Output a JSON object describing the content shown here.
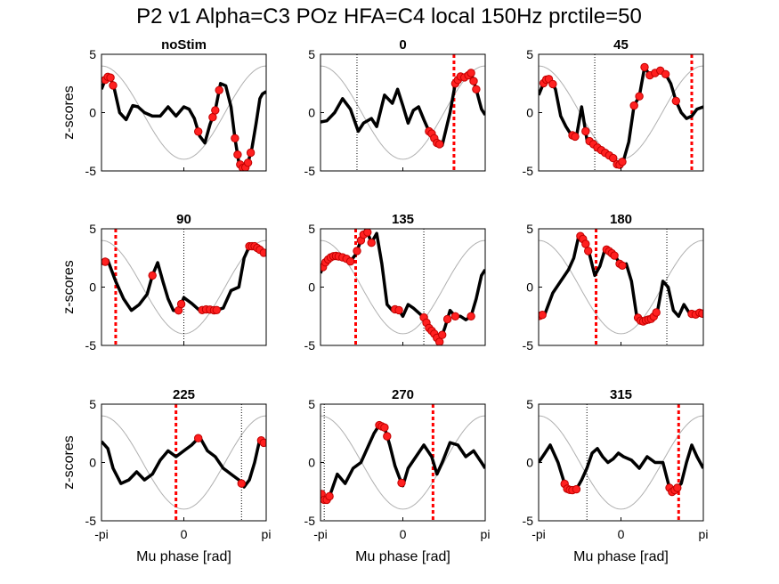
{
  "figure": {
    "title": "P2 v1 Alpha=C3 POz HFA=C4 local 150Hz prctile=50",
    "xlabel": "Mu phase [rad]",
    "ylabel": "z-scores",
    "xticklabels": [
      "-pi",
      "0",
      "pi"
    ],
    "yticklabels": [
      "5",
      "0",
      "-5"
    ]
  },
  "colors": {
    "trace": "#000000",
    "sig_marker": "#ff2020",
    "sig_marker_edge": "#c00000",
    "stim_line": "#ff0000",
    "reference_sine": "#b0b0b0",
    "axes": "#000000"
  },
  "chart_data": [
    {
      "type": "line",
      "title": "noStim",
      "xlim": [
        -3.1416,
        3.1416
      ],
      "ylim": [
        -5,
        5
      ],
      "grid": false,
      "has_ylabel": true,
      "has_xlabel": false,
      "has_xticklabels": false,
      "stim_phase": null,
      "reference_dotted_x": null,
      "series": [
        {
          "name": "",
          "x": [
            -3.14,
            -2.95,
            -2.8,
            -2.65,
            -2.45,
            -2.2,
            -1.95,
            -1.75,
            -1.5,
            -1.2,
            -0.9,
            -0.6,
            -0.3,
            0,
            0.2,
            0.4,
            0.6,
            0.8,
            1.0,
            1.2,
            1.4,
            1.6,
            1.8,
            1.95,
            2.1,
            2.3,
            2.45,
            2.6,
            2.75,
            2.9,
            3.0,
            3.14
          ],
          "y": [
            2.0,
            3.1,
            3.0,
            2.0,
            0.0,
            -0.6,
            0.6,
            0.5,
            0,
            -0.3,
            -0.3,
            0.5,
            -0.3,
            0.5,
            0.3,
            -0.5,
            -2.0,
            -2.6,
            -1.0,
            0.2,
            2.5,
            2.3,
            0.5,
            -2.2,
            -4.3,
            -4.9,
            -4.3,
            -3.0,
            -1.0,
            1.2,
            1.6,
            1.8
          ]
        },
        {
          "name": "sine",
          "x": [
            -3.14,
            3.14
          ],
          "y": [
            -4,
            4
          ]
        }
      ],
      "significant_x": [
        -3.0,
        -2.9,
        -2.8,
        -2.7,
        0.55,
        1.1,
        1.2,
        1.35,
        1.95,
        2.05,
        2.15,
        2.25,
        2.35,
        2.45,
        2.55
      ]
    },
    {
      "type": "line",
      "title": "0",
      "xlim": [
        -3.1416,
        3.1416
      ],
      "ylim": [
        -5,
        5
      ],
      "grid": false,
      "has_ylabel": false,
      "has_xlabel": false,
      "has_xticklabels": false,
      "stim_phase": 1.95,
      "reference_dotted_x": -1.75,
      "series": [
        {
          "name": "",
          "x": [
            -3.14,
            -2.9,
            -2.6,
            -2.3,
            -2.0,
            -1.7,
            -1.5,
            -1.2,
            -1.0,
            -0.7,
            -0.4,
            -0.2,
            0,
            0.2,
            0.4,
            0.6,
            0.8,
            1.0,
            1.1,
            1.3,
            1.5,
            1.8,
            2.0,
            2.2,
            2.4,
            2.6,
            2.8,
            3.0,
            3.14
          ],
          "y": [
            -0.8,
            -0.7,
            0.0,
            1.2,
            0.3,
            -1.6,
            -0.9,
            -0.5,
            -1.2,
            1.5,
            0.8,
            2.0,
            0.6,
            -0.9,
            0.2,
            0.5,
            -0.6,
            -1.6,
            -1.8,
            -2.6,
            -2.8,
            0.0,
            2.5,
            3.1,
            3.0,
            3.4,
            2.0,
            0.3,
            -0.2
          ]
        },
        {
          "name": "sine",
          "x": [
            -3.14,
            3.14
          ],
          "y": [
            -4,
            4
          ]
        }
      ],
      "significant_x": [
        1.0,
        1.1,
        1.2,
        1.3,
        1.4,
        2.0,
        2.1,
        2.2,
        2.35,
        2.5,
        2.6,
        2.7,
        2.8
      ]
    },
    {
      "type": "line",
      "title": "45",
      "xlim": [
        -3.1416,
        3.1416
      ],
      "ylim": [
        -5,
        5
      ],
      "grid": false,
      "has_ylabel": false,
      "has_xlabel": false,
      "has_xticklabels": false,
      "stim_phase": 2.7,
      "reference_dotted_x": -1.0,
      "series": [
        {
          "name": "",
          "x": [
            -3.14,
            -2.9,
            -2.7,
            -2.5,
            -2.3,
            -2.1,
            -1.9,
            -1.7,
            -1.5,
            -1.3,
            -1.1,
            -0.9,
            -0.7,
            -0.5,
            -0.3,
            -0.1,
            0.1,
            0.3,
            0.5,
            0.7,
            0.9,
            1.1,
            1.3,
            1.5,
            1.7,
            1.9,
            2.1,
            2.3,
            2.5,
            2.7,
            2.9,
            3.14
          ],
          "y": [
            1.5,
            2.8,
            2.9,
            2.0,
            -0.3,
            -1.2,
            -1.9,
            -2.1,
            0.5,
            -2.3,
            -2.6,
            -3.0,
            -3.3,
            -3.6,
            -3.9,
            -4.6,
            -4.1,
            -2.5,
            0.6,
            1.4,
            3.9,
            3.2,
            3.4,
            3.6,
            3.3,
            2.5,
            1.0,
            0.0,
            -0.5,
            -0.3,
            0.3,
            0.5
          ]
        },
        {
          "name": "sine",
          "x": [
            -3.14,
            3.14
          ],
          "y": [
            -4,
            4
          ]
        }
      ],
      "significant_x": [
        -2.95,
        -2.85,
        -2.75,
        -2.6,
        -1.85,
        -1.75,
        -1.35,
        -1.2,
        -1.05,
        -0.9,
        -0.75,
        -0.6,
        -0.45,
        -0.3,
        -0.15,
        -0.05,
        0.05,
        0.5,
        0.7,
        0.9,
        1.1,
        1.3,
        1.5,
        1.7,
        2.1
      ]
    },
    {
      "type": "line",
      "title": "90",
      "xlim": [
        -3.1416,
        3.1416
      ],
      "ylim": [
        -5,
        5
      ],
      "grid": false,
      "has_ylabel": true,
      "has_xlabel": false,
      "has_xticklabels": false,
      "stim_phase": -2.6,
      "reference_dotted_x": 0,
      "series": [
        {
          "name": "",
          "x": [
            -3.14,
            -2.9,
            -2.6,
            -2.3,
            -2.0,
            -1.7,
            -1.4,
            -1.2,
            -1.0,
            -0.8,
            -0.6,
            -0.4,
            -0.2,
            0,
            0.3,
            0.6,
            0.9,
            1.2,
            1.5,
            1.8,
            2.1,
            2.3,
            2.5,
            2.7,
            2.9,
            3.14
          ],
          "y": [
            2.0,
            2.3,
            0.5,
            -1.0,
            -2.0,
            -1.5,
            -0.6,
            1.0,
            2.1,
            0.5,
            -1.0,
            -2.0,
            -2.0,
            -0.9,
            -1.4,
            -2.0,
            -1.9,
            -2.0,
            -1.8,
            -0.3,
            0.0,
            2.5,
            3.5,
            3.5,
            3.2,
            2.8
          ]
        },
        {
          "name": "sine",
          "x": [
            -3.14,
            3.14
          ],
          "y": [
            -4,
            4
          ]
        }
      ],
      "significant_x": [
        -3.0,
        -1.2,
        -0.2,
        -0.1,
        0.7,
        0.85,
        1.0,
        1.15,
        1.25,
        2.5,
        2.6,
        2.7,
        2.8,
        2.9,
        3.05
      ]
    },
    {
      "type": "line",
      "title": "135",
      "xlim": [
        -3.1416,
        3.1416
      ],
      "ylim": [
        -5,
        5
      ],
      "grid": false,
      "has_ylabel": false,
      "has_xlabel": false,
      "has_xticklabels": false,
      "stim_phase": -1.8,
      "reference_dotted_x": 0.8,
      "series": [
        {
          "name": "",
          "x": [
            -3.14,
            -3.0,
            -2.8,
            -2.6,
            -2.4,
            -2.2,
            -2.0,
            -1.8,
            -1.6,
            -1.4,
            -1.2,
            -1.0,
            -0.8,
            -0.6,
            -0.4,
            -0.2,
            0,
            0.2,
            0.4,
            0.6,
            0.8,
            1.0,
            1.2,
            1.4,
            1.6,
            1.8,
            2.0,
            2.2,
            2.4,
            2.6,
            2.8,
            3.0,
            3.14
          ],
          "y": [
            1.2,
            2.0,
            2.5,
            2.7,
            2.6,
            2.5,
            2.2,
            2.8,
            4.0,
            5.0,
            3.8,
            4.6,
            2.0,
            -1.5,
            -2.0,
            -1.8,
            -2.5,
            -1.5,
            -1.8,
            -2.2,
            -2.6,
            -3.5,
            -4.0,
            -4.7,
            -3.5,
            -2.0,
            -2.5,
            -2.5,
            -2.8,
            -2.5,
            -1.0,
            1.0,
            1.5
          ]
        },
        {
          "name": "sine",
          "x": [
            -3.14,
            3.14
          ],
          "y": [
            -4,
            4
          ]
        }
      ],
      "significant_x": [
        -3.05,
        -2.95,
        -2.85,
        -2.75,
        -2.65,
        -2.55,
        -2.45,
        -2.3,
        -2.15,
        -2.0,
        -1.75,
        -1.6,
        -1.5,
        -1.35,
        -1.2,
        -0.3,
        -0.15,
        0.8,
        0.9,
        1.0,
        1.1,
        1.2,
        1.3,
        1.4,
        1.5,
        1.7,
        2.0,
        2.6
      ]
    },
    {
      "type": "line",
      "title": "180",
      "xlim": [
        -3.1416,
        3.1416
      ],
      "ylim": [
        -5,
        5
      ],
      "grid": false,
      "has_ylabel": false,
      "has_xlabel": false,
      "has_xticklabels": false,
      "stim_phase": -0.95,
      "reference_dotted_x": 1.75,
      "series": [
        {
          "name": "",
          "x": [
            -3.14,
            -2.9,
            -2.6,
            -2.3,
            -2.0,
            -1.8,
            -1.6,
            -1.4,
            -1.2,
            -1.0,
            -0.8,
            -0.6,
            -0.4,
            -0.2,
            0,
            0.2,
            0.4,
            0.6,
            0.8,
            1.0,
            1.2,
            1.4,
            1.6,
            1.8,
            2.0,
            2.2,
            2.4,
            2.6,
            2.8,
            3.0,
            3.14
          ],
          "y": [
            -2.5,
            -2.3,
            -0.5,
            0.5,
            1.5,
            2.5,
            4.5,
            4.0,
            2.8,
            1.0,
            1.8,
            3.3,
            3.0,
            2.6,
            1.8,
            2.0,
            0.5,
            -2.5,
            -3.0,
            -2.8,
            -2.7,
            -2.0,
            0.5,
            0.0,
            -2.0,
            -2.5,
            -1.5,
            -2.2,
            -2.4,
            -2.2,
            -2.3
          ]
        },
        {
          "name": "sine",
          "x": [
            -3.14,
            3.14
          ],
          "y": [
            -4,
            4
          ]
        }
      ],
      "significant_x": [
        -3.1,
        -3.0,
        -1.55,
        -1.45,
        -1.35,
        -1.25,
        -0.55,
        -0.45,
        -0.35,
        -0.25,
        -0.05,
        0.05,
        0.65,
        0.75,
        0.85,
        0.95,
        1.05,
        1.15,
        1.25,
        1.35,
        2.7,
        2.85,
        3.0,
        3.1
      ]
    },
    {
      "type": "line",
      "title": "225",
      "xlim": [
        -3.1416,
        3.1416
      ],
      "ylim": [
        -5,
        5
      ],
      "grid": false,
      "has_ylabel": true,
      "has_xlabel": true,
      "has_xticklabels": true,
      "stim_phase": -0.3,
      "reference_dotted_x": 2.2,
      "series": [
        {
          "name": "",
          "x": [
            -3.14,
            -2.9,
            -2.7,
            -2.4,
            -2.1,
            -1.8,
            -1.5,
            -1.2,
            -0.9,
            -0.6,
            -0.3,
            0,
            0.3,
            0.6,
            0.9,
            1.2,
            1.5,
            1.8,
            2.1,
            2.3,
            2.5,
            2.7,
            2.9,
            3.14
          ],
          "y": [
            1.8,
            1.2,
            -0.5,
            -1.8,
            -1.5,
            -0.8,
            -1.5,
            -1.0,
            0.2,
            1.0,
            0.5,
            1.0,
            1.5,
            2.2,
            1.0,
            0.5,
            -0.5,
            -1.0,
            -1.5,
            -2.1,
            -1.5,
            0.0,
            2.0,
            1.5
          ]
        },
        {
          "name": "sine",
          "x": [
            -3.14,
            3.14
          ],
          "y": [
            -4,
            4
          ]
        }
      ],
      "significant_x": [
        0.55,
        2.2,
        2.95,
        3.05
      ]
    },
    {
      "type": "line",
      "title": "270",
      "xlim": [
        -3.1416,
        3.1416
      ],
      "ylim": [
        -5,
        5
      ],
      "grid": false,
      "has_ylabel": false,
      "has_xlabel": true,
      "has_xticklabels": true,
      "stim_phase": 1.15,
      "reference_dotted_x": -3.0,
      "series": [
        {
          "name": "",
          "x": [
            -3.14,
            -3.0,
            -2.85,
            -2.7,
            -2.5,
            -2.2,
            -1.9,
            -1.6,
            -1.3,
            -1.1,
            -0.9,
            -0.7,
            -0.5,
            -0.3,
            -0.1,
            0.0,
            0.2,
            0.5,
            0.8,
            1.1,
            1.3,
            1.5,
            1.8,
            2.1,
            2.4,
            2.7,
            3.0,
            3.14
          ],
          "y": [
            -2.5,
            -3.2,
            -3.2,
            -2.3,
            -1.0,
            -1.8,
            -0.5,
            0.0,
            1.5,
            2.5,
            3.2,
            3.0,
            1.5,
            -0.3,
            -1.5,
            -2.0,
            -0.5,
            0.5,
            1.5,
            0.5,
            -1.0,
            0.0,
            1.7,
            1.5,
            0.5,
            1.0,
            0.0,
            -0.5
          ]
        },
        {
          "name": "sine",
          "x": [
            -3.14,
            3.14
          ],
          "y": [
            -4,
            4
          ]
        }
      ],
      "significant_x": [
        -3.1,
        -3.0,
        -2.9,
        -2.8,
        -0.9,
        -0.8,
        -0.7,
        -0.6,
        -0.05
      ]
    },
    {
      "type": "line",
      "title": "315",
      "xlim": [
        -3.1416,
        3.1416
      ],
      "ylim": [
        -5,
        5
      ],
      "grid": false,
      "has_ylabel": false,
      "has_xlabel": true,
      "has_xticklabels": true,
      "stim_phase": 2.2,
      "reference_dotted_x": -1.3,
      "series": [
        {
          "name": "",
          "x": [
            -3.14,
            -2.9,
            -2.7,
            -2.4,
            -2.1,
            -1.9,
            -1.7,
            -1.5,
            -1.3,
            -1.1,
            -0.9,
            -0.7,
            -0.5,
            -0.3,
            -0.1,
            0.1,
            0.4,
            0.7,
            1.0,
            1.3,
            1.6,
            1.9,
            2.1,
            2.3,
            2.5,
            2.7,
            2.9,
            3.14
          ],
          "y": [
            0.0,
            0.8,
            1.5,
            0.0,
            -2.2,
            -2.4,
            -2.3,
            -1.5,
            -0.5,
            0.8,
            1.2,
            0.5,
            0.0,
            0.3,
            0.8,
            0.5,
            0.2,
            -0.5,
            0.5,
            0.0,
            0.0,
            -2.6,
            -2.3,
            -1.8,
            0.0,
            1.5,
            0.5,
            -0.5
          ]
        },
        {
          "name": "sine",
          "x": [
            -3.14,
            3.14
          ],
          "y": [
            -4,
            4
          ]
        }
      ],
      "significant_x": [
        -2.15,
        -2.05,
        -1.95,
        -1.85,
        -1.7,
        1.85,
        1.95,
        2.05,
        2.15
      ]
    }
  ]
}
